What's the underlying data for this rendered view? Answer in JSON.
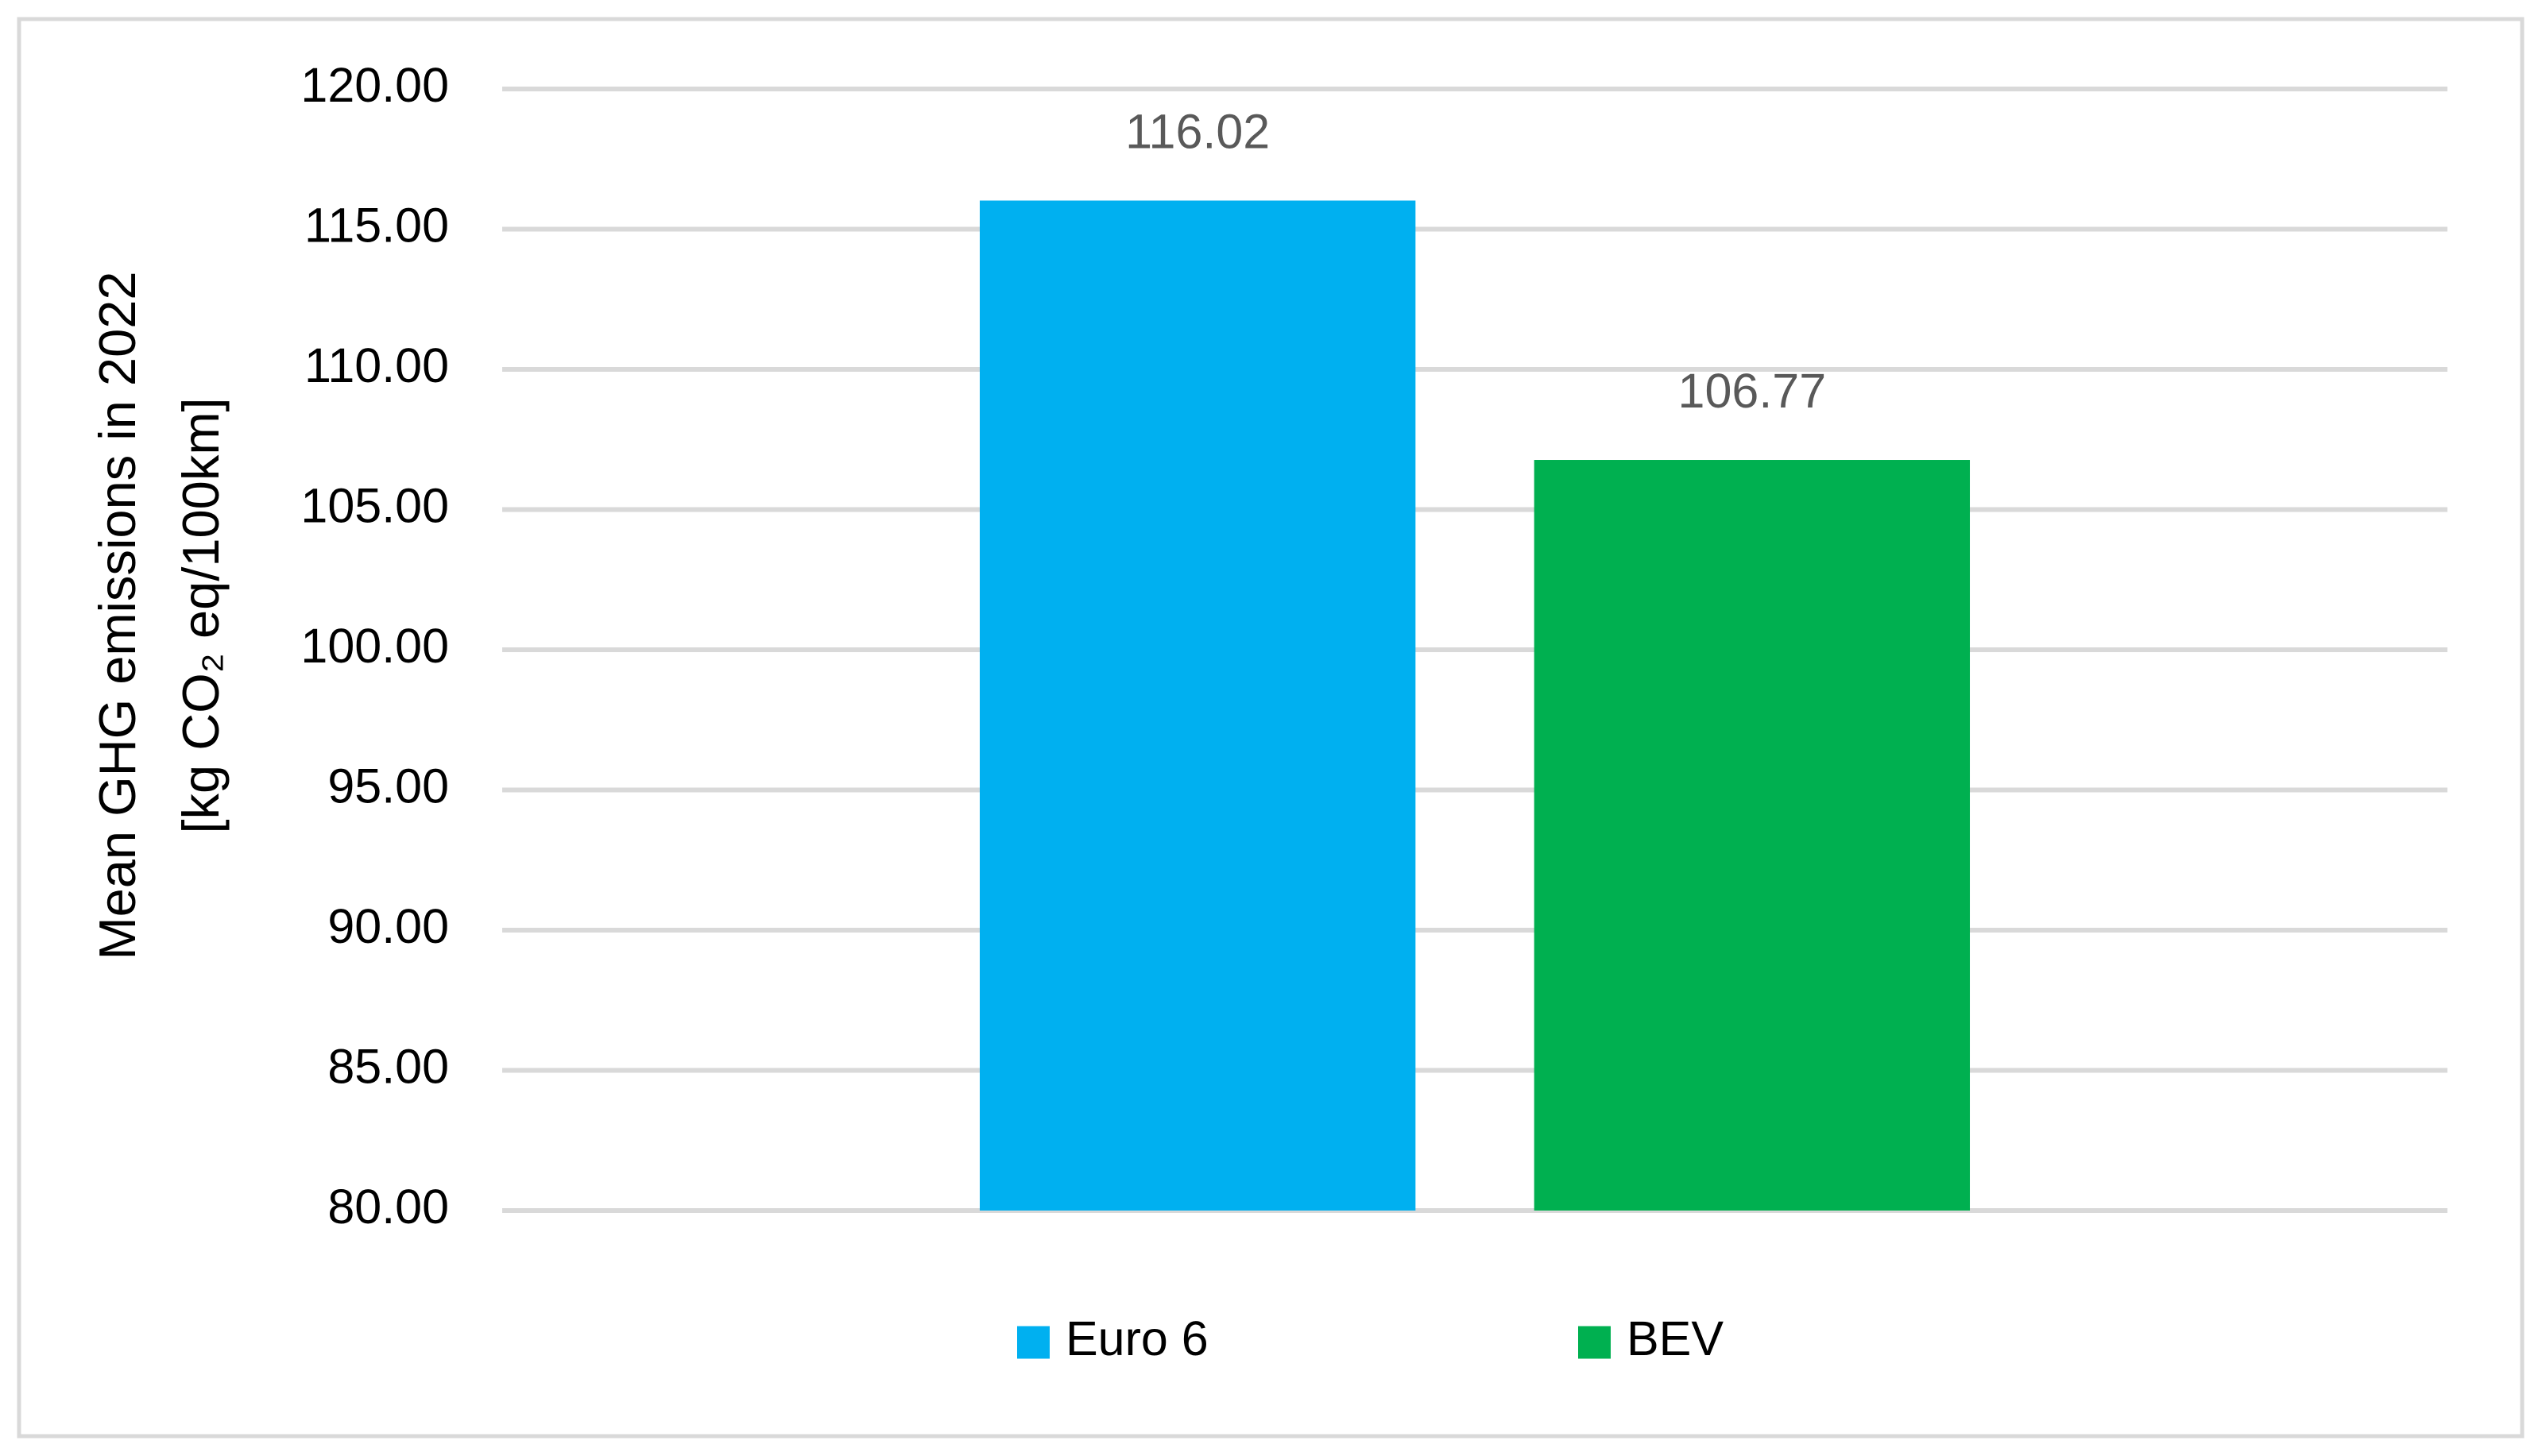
{
  "chart_data": {
    "type": "bar",
    "ylabel": [
      "Mean GHG emissions in 2022",
      "[kg CO₂ eq/100km]"
    ],
    "categories": [
      null
    ],
    "series": [
      {
        "name": "Euro 6",
        "color": "#00b0f0",
        "values": [
          116.02
        ]
      },
      {
        "name": "BEV",
        "color": "#00b050",
        "values": [
          106.77
        ]
      }
    ],
    "ylim": [
      80,
      120
    ],
    "yticks": [
      {
        "value": 80,
        "label": "80.00"
      },
      {
        "value": 85,
        "label": "85.00"
      },
      {
        "value": 90,
        "label": "90.00"
      },
      {
        "value": 95,
        "label": "95.00"
      },
      {
        "value": 100,
        "label": "100.00"
      },
      {
        "value": 105,
        "label": "105.00"
      },
      {
        "value": 110,
        "label": "110.00"
      },
      {
        "value": 115,
        "label": "115.00"
      },
      {
        "value": 120,
        "label": "120.00"
      }
    ],
    "grid": true,
    "legend": "bottom"
  }
}
